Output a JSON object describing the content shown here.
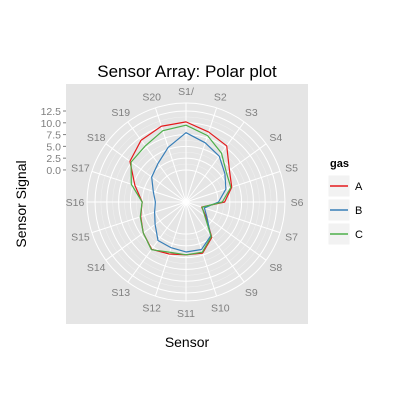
{
  "chart_data": {
    "type": "line",
    "coord": "polar",
    "title": "Sensor Array: Polar plot",
    "xlabel": "Sensor",
    "ylabel": "Sensor Signal",
    "categories": [
      "S1",
      "S2",
      "S3",
      "S4",
      "S5",
      "S6",
      "S7",
      "S8",
      "S9",
      "S10",
      "S11",
      "S12",
      "S13",
      "S14",
      "S15",
      "S16",
      "S17",
      "S18",
      "S19",
      "S20"
    ],
    "category_labels": [
      "S1/",
      "S2",
      "S3",
      "S4",
      "S5",
      "S6",
      "S7",
      "S8",
      "S9",
      "S10",
      "S11",
      "S12",
      "S13",
      "S14",
      "S15",
      "S16",
      "S17",
      "S18",
      "S19",
      "S20"
    ],
    "y_ticks": [
      0.0,
      2.5,
      5.0,
      7.5,
      10.0,
      12.5
    ],
    "y_tick_labels": [
      "0.0",
      "2.5",
      "5.0",
      "7.5",
      "10.0",
      "12.5"
    ],
    "ylim": [
      -6.8,
      14.2
    ],
    "legend": {
      "title": "gas",
      "position": "right"
    },
    "series": [
      {
        "name": "A",
        "color": "#e41a1c",
        "values": [
          10.2,
          8.8,
          7.9,
          4.6,
          3.4,
          1.4,
          -3.3,
          -1.6,
          2.5,
          4.6,
          4.4,
          4.8,
          5.6,
          4.4,
          3.3,
          2.5,
          4.6,
          7.9,
          9.4,
          10.1
        ]
      },
      {
        "name": "B",
        "color": "#377eb8",
        "values": [
          7.9,
          6.4,
          5.2,
          3.4,
          2.1,
          0.1,
          -2.7,
          -1.3,
          2.1,
          3.8,
          3.8,
          3.4,
          3.3,
          1.3,
          0.2,
          -0.3,
          0.5,
          2.2,
          3.3,
          5.4
        ]
      },
      {
        "name": "C",
        "color": "#4daf4a",
        "values": [
          9.5,
          8.0,
          6.0,
          3.8,
          3.2,
          0.9,
          -3.2,
          -1.9,
          2.3,
          4.4,
          4.4,
          4.4,
          5.7,
          4.4,
          3.4,
          2.5,
          5.4,
          7.6,
          7.9,
          9.1
        ]
      }
    ]
  }
}
